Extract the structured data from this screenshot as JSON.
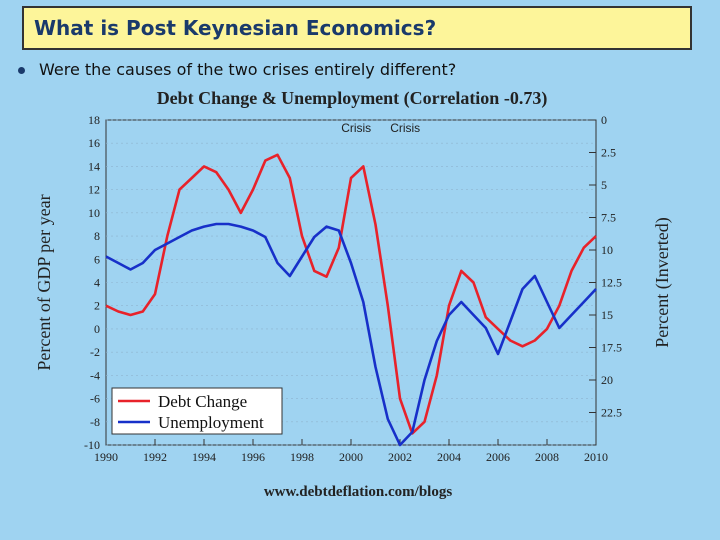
{
  "slide": {
    "title": "What is Post Keynesian Economics?",
    "bullet": "Were the causes of the two crises entirely different?"
  },
  "chart_data": {
    "type": "line",
    "title": "Debt Change & Unemployment (Correlation -0.73)",
    "ylabel_left": "Percent of GDP per year",
    "ylabel_right": "Percent (Inverted)",
    "source": "www.debtdeflation.com/blogs",
    "annotations": [
      "Crisis",
      "Crisis"
    ],
    "x_ticks": [
      "1990",
      "1992",
      "1994",
      "1996",
      "1998",
      "2000",
      "2002",
      "2004",
      "2006",
      "2008",
      "2010"
    ],
    "xlim": [
      1990,
      2010
    ],
    "left_ticks": [
      "18",
      "16",
      "14",
      "12",
      "10",
      "8",
      "6",
      "4",
      "2",
      "0",
      "-2",
      "-4",
      "-6",
      "-8",
      "-10"
    ],
    "ylim_left": [
      -10,
      18
    ],
    "right_ticks": [
      "0",
      "2.5",
      "5",
      "7.5",
      "10",
      "12.5",
      "15",
      "17.5",
      "20",
      "22.5"
    ],
    "ylim_right_inverted": [
      0,
      25
    ],
    "legend_position": "bottom-left",
    "colors": {
      "debt": "#e8222a",
      "unemployment": "#1730c9"
    },
    "series": [
      {
        "name": "Debt Change",
        "axis": "left",
        "x": [
          1990,
          1990.5,
          1991,
          1991.5,
          1992,
          1992.5,
          1993,
          1993.5,
          1994,
          1994.5,
          1995,
          1995.5,
          1996,
          1996.5,
          1997,
          1997.5,
          1998,
          1998.5,
          1999,
          1999.5,
          2000,
          2000.5,
          2001,
          2001.5,
          2002,
          2002.5,
          2003,
          2003.5,
          2004,
          2004.5,
          2005,
          2005.5,
          2006,
          2006.5,
          2007,
          2007.5,
          2008,
          2008.5,
          2009,
          2009.5,
          2010
        ],
        "values": [
          2,
          1.5,
          1.2,
          1.5,
          3,
          8,
          12,
          13,
          14,
          13.5,
          12,
          10,
          12,
          14.5,
          15,
          13,
          8,
          5,
          4.5,
          7,
          13,
          14,
          9,
          2,
          -6,
          -9,
          -8,
          -4,
          2,
          5,
          4,
          1,
          0,
          -1,
          -1.5,
          -1,
          0,
          2,
          5,
          7,
          8
        ]
      },
      {
        "name": "Unemployment",
        "axis": "right",
        "x": [
          1990,
          1990.5,
          1991,
          1991.5,
          1992,
          1992.5,
          1993,
          1993.5,
          1994,
          1994.5,
          1995,
          1995.5,
          1996,
          1996.5,
          1997,
          1997.5,
          1998,
          1998.5,
          1999,
          1999.5,
          2000,
          2000.5,
          2001,
          2001.5,
          2002,
          2002.5,
          2003,
          2003.5,
          2004,
          2004.5,
          2005,
          2005.5,
          2006,
          2006.5,
          2007,
          2007.5,
          2008,
          2008.5,
          2009,
          2009.5,
          2010
        ],
        "values": [
          10.5,
          11,
          11.5,
          11,
          10,
          9.5,
          9,
          8.5,
          8.2,
          8,
          8,
          8.2,
          8.5,
          9,
          11,
          12,
          10.5,
          9,
          8.2,
          8.5,
          11,
          14,
          19,
          23,
          25,
          24,
          20,
          17,
          15,
          14,
          15,
          16,
          18,
          15.5,
          13,
          12,
          14,
          16,
          15,
          14,
          13
        ]
      }
    ]
  }
}
